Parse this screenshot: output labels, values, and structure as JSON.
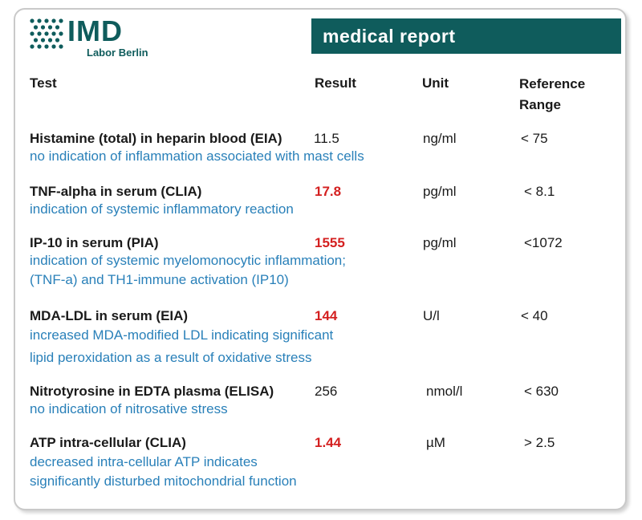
{
  "logo": {
    "text": "IMD",
    "subtitle": "Labor Berlin"
  },
  "banner": "medical report",
  "headers": {
    "test": "Test",
    "result": "Result",
    "unit": "Unit",
    "ref_line1": "Reference",
    "ref_line2": "Range"
  },
  "colors": {
    "brand": "#0f5c5c",
    "flag": "#d42020",
    "comment": "#2980b9"
  },
  "rows": [
    {
      "name": "Histamine (total) in heparin blood (EIA)",
      "result": "11.5",
      "flagged": false,
      "unit": "ng/ml",
      "ref": "< 75",
      "comment": [
        "no indication of inflammation associated with mast cells"
      ]
    },
    {
      "name": "TNF-alpha in serum (CLIA)",
      "result": "17.8",
      "flagged": true,
      "unit": "pg/ml",
      "ref": "< 8.1",
      "comment": [
        "indication of systemic inflammatory reaction"
      ]
    },
    {
      "name": "IP-10 in serum (PIA)",
      "result": "1555",
      "flagged": true,
      "unit": "pg/ml",
      "ref": "<1072",
      "comment": [
        "indication of systemic myelomonocytic inflammation;",
        "(TNF-a) and TH1-immune activation (IP10)"
      ]
    },
    {
      "name": "MDA-LDL in serum (EIA)",
      "result": "144",
      "flagged": true,
      "unit": "U/l",
      "ref": "< 40",
      "comment": [
        "increased MDA-modified LDL indicating significant",
        "lipid peroxidation as a result of oxidative stress"
      ]
    },
    {
      "name": "Nitrotyrosine in EDTA plasma (ELISA)",
      "result": "256",
      "flagged": false,
      "unit": "nmol/l",
      "ref": "< 630",
      "comment": [
        "no indication of nitrosative stress"
      ]
    },
    {
      "name": "ATP intra-cellular (CLIA)",
      "result": "1.44",
      "flagged": true,
      "unit": "µM",
      "ref": "> 2.5",
      "comment": [
        "decreased intra-cellular ATP indicates",
        "significantly disturbed mitochondrial function"
      ]
    }
  ]
}
